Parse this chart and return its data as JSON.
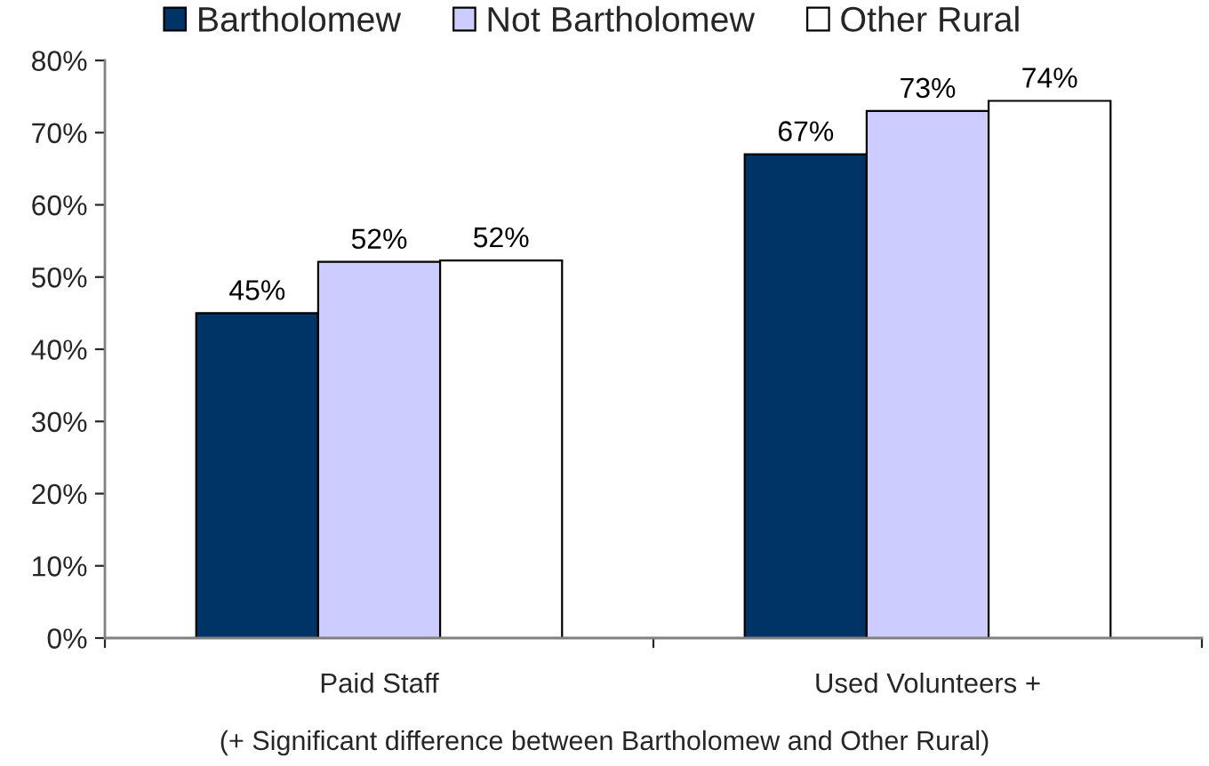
{
  "chart_data": {
    "type": "bar",
    "categories": [
      "Paid Staff",
      "Used Volunteers +"
    ],
    "series": [
      {
        "name": "Bartholomew",
        "color": "#003366",
        "values": [
          45,
          67
        ],
        "value_labels": [
          "45%",
          "67%"
        ]
      },
      {
        "name": "Not Bartholomew",
        "color": "#ccccff",
        "values": [
          52.1,
          73
        ],
        "value_labels": [
          "52%",
          "73%"
        ]
      },
      {
        "name": "Other Rural",
        "color": "#ffffff",
        "values": [
          52.3,
          74.4
        ],
        "value_labels": [
          "52%",
          "74%"
        ]
      }
    ],
    "ylim": [
      0,
      80
    ],
    "yticks": [
      {
        "value": 0,
        "label": "0%"
      },
      {
        "value": 10,
        "label": "10%"
      },
      {
        "value": 20,
        "label": "20%"
      },
      {
        "value": 30,
        "label": "30%"
      },
      {
        "value": 40,
        "label": "40%"
      },
      {
        "value": 50,
        "label": "50%"
      },
      {
        "value": 60,
        "label": "60%"
      },
      {
        "value": 70,
        "label": "70%"
      },
      {
        "value": 80,
        "label": "80%"
      }
    ],
    "grid": false,
    "legend": "top",
    "annotations": [
      "(+ Significant difference between Bartholomew and Other Rural)"
    ]
  }
}
